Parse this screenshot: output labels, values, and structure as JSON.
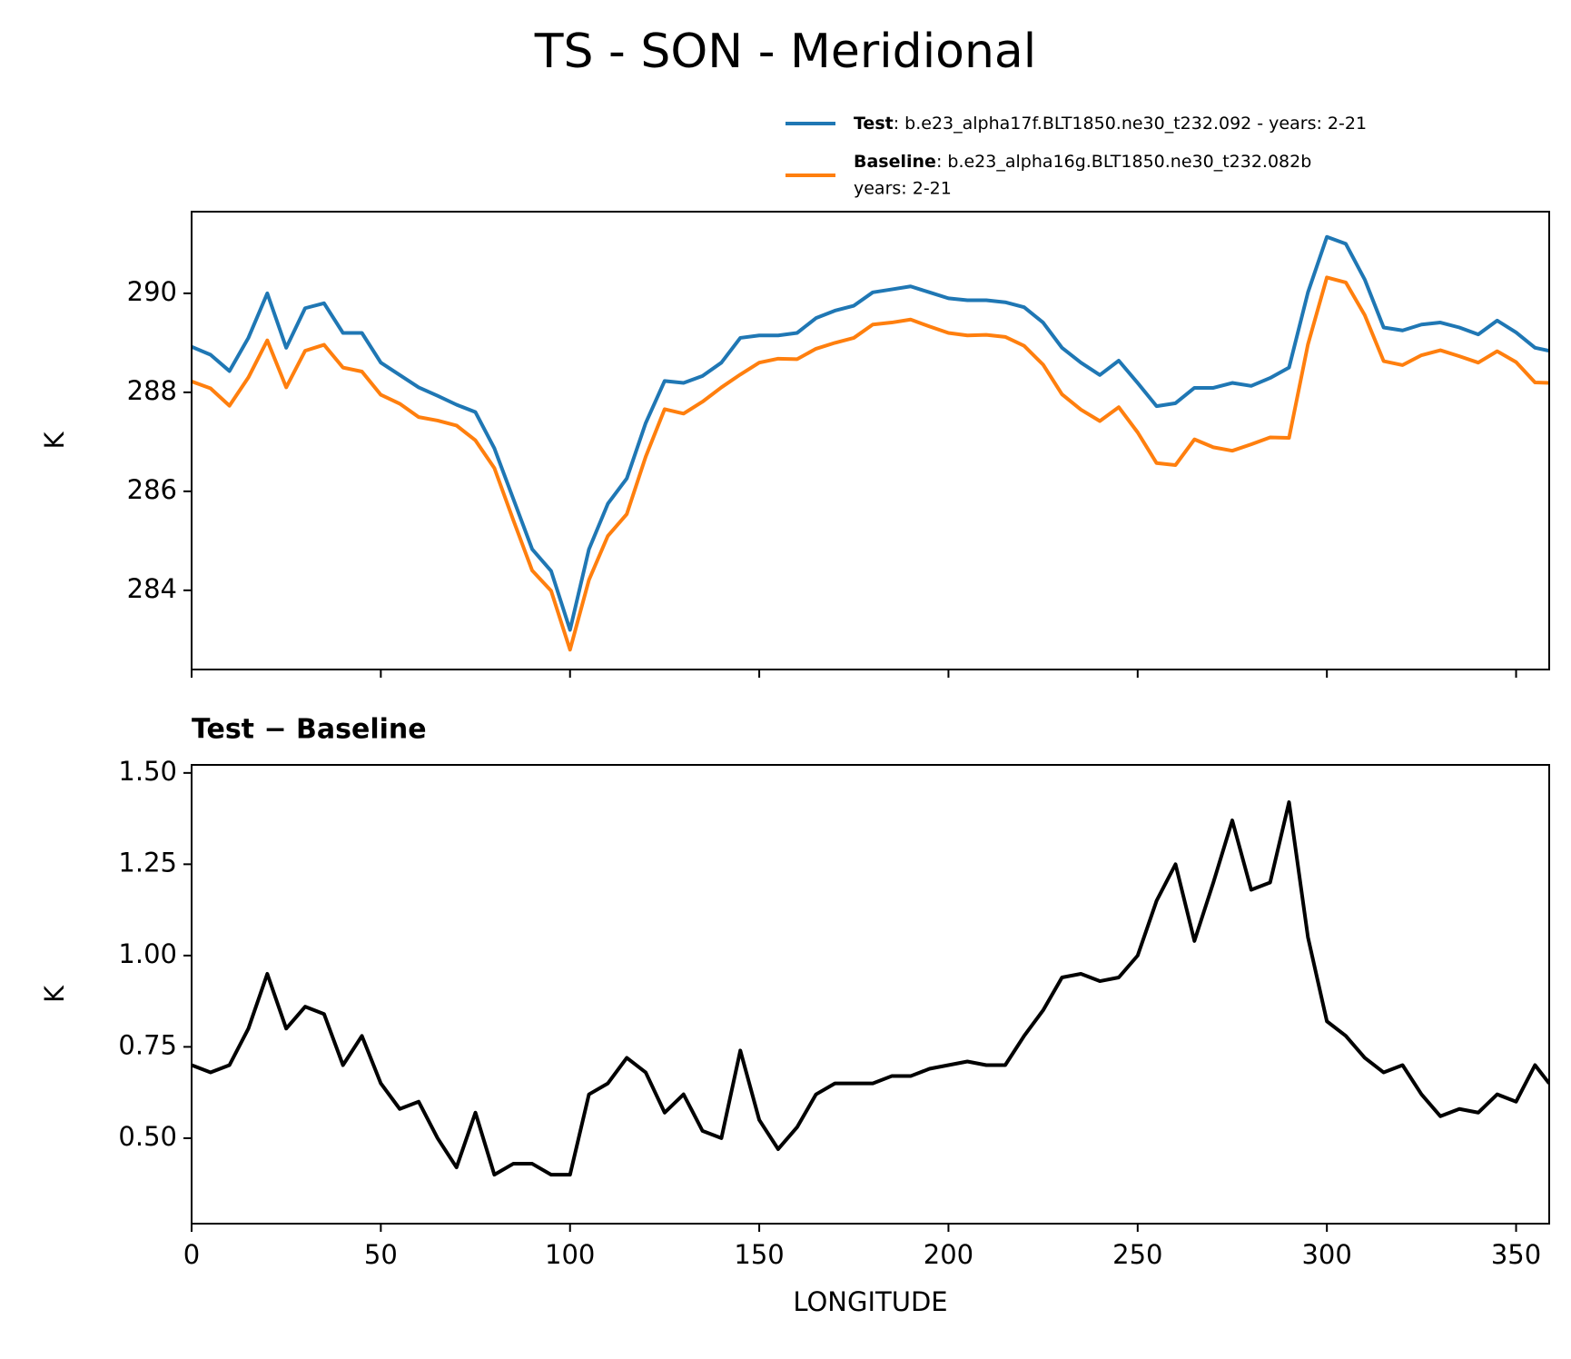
{
  "title": "TS - SON - Meridional",
  "chart_data": [
    {
      "type": "line",
      "ylabel": "K",
      "x": [
        0,
        5,
        10,
        15,
        20,
        25,
        30,
        35,
        40,
        45,
        50,
        55,
        60,
        65,
        70,
        75,
        80,
        85,
        90,
        95,
        100,
        105,
        110,
        115,
        120,
        125,
        130,
        135,
        140,
        145,
        150,
        155,
        160,
        165,
        170,
        175,
        180,
        185,
        190,
        195,
        200,
        205,
        210,
        215,
        220,
        225,
        230,
        235,
        240,
        245,
        250,
        255,
        260,
        265,
        270,
        275,
        280,
        285,
        290,
        295,
        300,
        305,
        310,
        315,
        320,
        325,
        330,
        335,
        340,
        345,
        350,
        355,
        358.75
      ],
      "series": [
        {
          "name": "Test",
          "description": [
            ": b.e23_alpha17f.BLT1850.ne30_t232.092 - years: 2-21"
          ],
          "color": "#1f77b4",
          "values": [
            288.92,
            288.76,
            288.43,
            289.1,
            290.0,
            288.9,
            289.7,
            289.8,
            289.2,
            289.2,
            288.6,
            288.35,
            288.1,
            287.93,
            287.75,
            287.6,
            286.87,
            285.85,
            284.83,
            284.39,
            283.2,
            284.83,
            285.75,
            286.26,
            287.38,
            288.23,
            288.19,
            288.33,
            288.6,
            289.1,
            289.15,
            289.15,
            289.2,
            289.5,
            289.65,
            289.75,
            290.02,
            290.08,
            290.14,
            290.02,
            289.9,
            289.86,
            289.86,
            289.82,
            289.72,
            289.41,
            288.9,
            288.6,
            288.35,
            288.64,
            288.19,
            287.72,
            287.78,
            288.09,
            288.09,
            288.19,
            288.13,
            288.29,
            288.5,
            290.02,
            291.14,
            291.0,
            290.28,
            289.31,
            289.25,
            289.37,
            289.41,
            289.31,
            289.17,
            289.45,
            289.21,
            288.9,
            288.84
          ]
        },
        {
          "name": "Baseline",
          "description": [
            ": b.e23_alpha16g.BLT1850.ne30_t232.082b",
            "years: 2-21"
          ],
          "color": "#ff7f0e",
          "values": [
            288.22,
            288.08,
            287.73,
            288.3,
            289.05,
            288.1,
            288.84,
            288.96,
            288.5,
            288.42,
            287.95,
            287.77,
            287.5,
            287.43,
            287.33,
            287.03,
            286.47,
            285.42,
            284.4,
            283.99,
            282.8,
            284.21,
            285.1,
            285.54,
            286.7,
            287.66,
            287.57,
            287.81,
            288.1,
            288.36,
            288.6,
            288.68,
            288.67,
            288.88,
            289.0,
            289.1,
            289.37,
            289.41,
            289.47,
            289.33,
            289.2,
            289.15,
            289.16,
            289.12,
            288.94,
            288.56,
            287.96,
            287.65,
            287.42,
            287.7,
            287.19,
            286.57,
            286.53,
            287.05,
            286.89,
            286.82,
            286.95,
            287.09,
            287.08,
            288.97,
            290.32,
            290.22,
            289.56,
            288.63,
            288.55,
            288.75,
            288.85,
            288.73,
            288.6,
            288.83,
            288.61,
            288.2,
            288.19
          ]
        }
      ],
      "xlim": [
        0,
        358.75
      ],
      "ylim": [
        282.4,
        291.65
      ],
      "yticks": [
        284,
        286,
        288,
        290
      ]
    },
    {
      "type": "line",
      "title": "Test − Baseline",
      "xlabel": "LONGITUDE",
      "ylabel": "K",
      "x": [
        0,
        5,
        10,
        15,
        20,
        25,
        30,
        35,
        40,
        45,
        50,
        55,
        60,
        65,
        70,
        75,
        80,
        85,
        90,
        95,
        100,
        105,
        110,
        115,
        120,
        125,
        130,
        135,
        140,
        145,
        150,
        155,
        160,
        165,
        170,
        175,
        180,
        185,
        190,
        195,
        200,
        205,
        210,
        215,
        220,
        225,
        230,
        235,
        240,
        245,
        250,
        255,
        260,
        265,
        270,
        275,
        280,
        285,
        290,
        295,
        300,
        305,
        310,
        315,
        320,
        325,
        330,
        335,
        340,
        345,
        350,
        355,
        358.75
      ],
      "series": [
        {
          "name": "Test − Baseline",
          "color": "#000000",
          "values": [
            0.7,
            0.68,
            0.7,
            0.8,
            0.95,
            0.8,
            0.86,
            0.84,
            0.7,
            0.78,
            0.65,
            0.58,
            0.6,
            0.5,
            0.42,
            0.57,
            0.4,
            0.43,
            0.43,
            0.4,
            0.4,
            0.62,
            0.65,
            0.72,
            0.68,
            0.57,
            0.62,
            0.52,
            0.5,
            0.74,
            0.55,
            0.47,
            0.53,
            0.62,
            0.65,
            0.65,
            0.65,
            0.67,
            0.67,
            0.69,
            0.7,
            0.71,
            0.7,
            0.7,
            0.78,
            0.85,
            0.94,
            0.95,
            0.93,
            0.94,
            1.0,
            1.15,
            1.25,
            1.04,
            1.2,
            1.37,
            1.18,
            1.2,
            1.42,
            1.05,
            0.82,
            0.78,
            0.72,
            0.68,
            0.7,
            0.62,
            0.56,
            0.58,
            0.57,
            0.62,
            0.6,
            0.7,
            0.65
          ]
        }
      ],
      "xlim": [
        0,
        358.75
      ],
      "ylim": [
        0.266,
        1.522
      ],
      "xticks": [
        0,
        50,
        100,
        150,
        200,
        250,
        300,
        350
      ],
      "yticks": [
        {
          "value": 0.5,
          "label": "0.50"
        },
        {
          "value": 0.75,
          "label": "0.75"
        },
        {
          "value": 1,
          "label": "1.00"
        },
        {
          "value": 1.25,
          "label": "1.25"
        },
        {
          "value": 1.5,
          "label": "1.50"
        }
      ]
    }
  ]
}
